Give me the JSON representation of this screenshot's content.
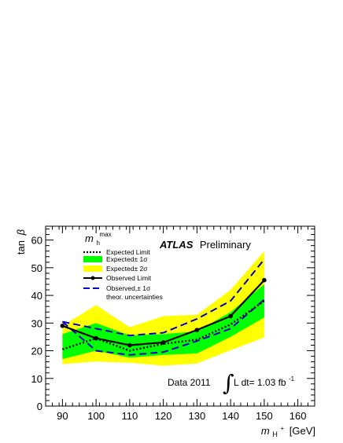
{
  "chart_data": {
    "type": "line",
    "scenario_label": "m",
    "scenario_sub": "h",
    "scenario_sup": "max",
    "xlabel_main": "m",
    "xlabel_sub": "H",
    "xlabel_sup": "+",
    "xlabel_unit": "[GeV]",
    "ylabel_main": "tan",
    "ylabel_symbol": "β",
    "xlim": [
      85,
      165
    ],
    "ylim": [
      0,
      65
    ],
    "xticks": [
      "90",
      "100",
      "110",
      "120",
      "130",
      "140",
      "150",
      "160"
    ],
    "yticks": [
      "0",
      "10",
      "20",
      "30",
      "40",
      "50",
      "60"
    ],
    "atlas_label": "ATLAS",
    "atlas_sub": "Preliminary",
    "lumi_data": "Data 2011",
    "lumi_integral": "∫",
    "lumi_text": "L dt= 1.03 fb",
    "lumi_sup": "-1",
    "legend": [
      {
        "key": "expected",
        "label": "Expected Limit"
      },
      {
        "key": "band1",
        "label": "Expected± 1σ"
      },
      {
        "key": "band2",
        "label": "Expected± 2σ"
      },
      {
        "key": "observed",
        "label": "Observed Limit"
      },
      {
        "key": "theory",
        "label": "Observed,± 1σ"
      },
      {
        "key": "theory2",
        "label": "theor. uncertainties"
      }
    ],
    "x": [
      90,
      100,
      110,
      120,
      130,
      140,
      150
    ],
    "series": [
      {
        "name": "Expected Limit",
        "values": [
          20.5,
          24.5,
          20,
          22.5,
          24,
          29.5,
          38
        ]
      },
      {
        "name": "Observed Limit",
        "values": [
          29,
          24.5,
          22,
          23,
          27.5,
          32.5,
          45.5
        ]
      },
      {
        "name": "Observed +1σ theor. uncertainties",
        "values": [
          30.5,
          28,
          25.5,
          26.5,
          31.5,
          38,
          53
        ]
      },
      {
        "name": "Observed -1σ theor. uncertainties",
        "values": [
          30.5,
          20,
          18.5,
          19.5,
          23.5,
          28,
          38.5
        ]
      }
    ],
    "band_1sigma": {
      "upper": [
        26,
        30,
        25.5,
        26,
        27,
        34,
        44
      ],
      "lower": [
        17,
        20,
        17.5,
        18.5,
        19,
        25,
        32
      ]
    },
    "band_2sigma": {
      "upper": [
        29,
        36.5,
        28.5,
        32.5,
        33,
        42,
        56
      ]
    },
    "colors": {
      "band1": "#00ff00",
      "band2": "#ffff00",
      "theory": "#0000cc",
      "line": "#000000"
    }
  }
}
